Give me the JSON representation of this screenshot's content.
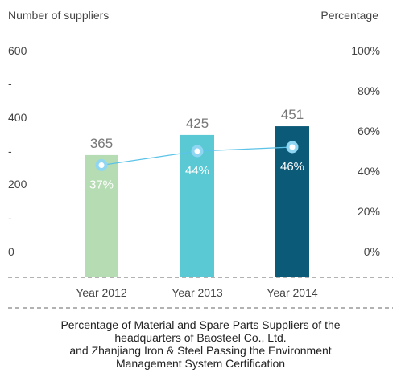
{
  "left_axis_title": "Number of suppliers",
  "right_axis_title": "Percentage",
  "left_ticks": [
    "600",
    "-",
    "400",
    "-",
    "200",
    "-",
    "0"
  ],
  "right_ticks": [
    "100%",
    "80%",
    "60%",
    "40%",
    "20%",
    "0%"
  ],
  "caption": [
    "Percentage of Material and Spare Parts Suppliers of the",
    "headquarters of Baosteel Co., Ltd.",
    "and Zhanjiang Iron & Steel Passing the Environment",
    "Management System Certification"
  ],
  "chart_data": {
    "type": "bar",
    "categories": [
      "Year 2012",
      "Year 2013",
      "Year 2014"
    ],
    "series": [
      {
        "values": [
          365,
          425,
          451
        ],
        "axis": "left"
      },
      {
        "type": "line",
        "values": [
          37,
          44,
          46
        ],
        "labels": [
          "37%",
          "44%",
          "46%"
        ],
        "axis": "right"
      }
    ],
    "ylim": [
      0,
      600
    ],
    "y2lim": [
      0,
      100
    ],
    "colors": {
      "bars": [
        "#b5dcb3",
        "#5bc9d4",
        "#0b5a78"
      ],
      "bar_label": "#777777",
      "line": "#5bc3e8",
      "marker": "#8fd6f2",
      "percent_label": "#ffffff",
      "axis_line": "#666666"
    },
    "grid": false,
    "legend": "none"
  }
}
